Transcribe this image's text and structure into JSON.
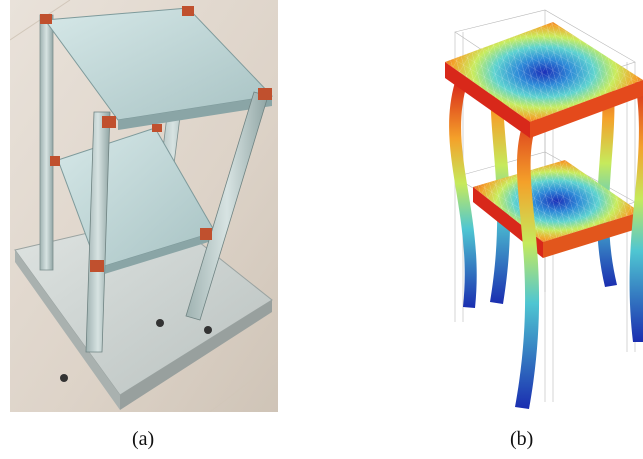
{
  "figure": {
    "panels": [
      {
        "label": "(a)",
        "depicts": "photograph"
      },
      {
        "label": "(b)",
        "depicts": "simulation"
      }
    ]
  }
}
